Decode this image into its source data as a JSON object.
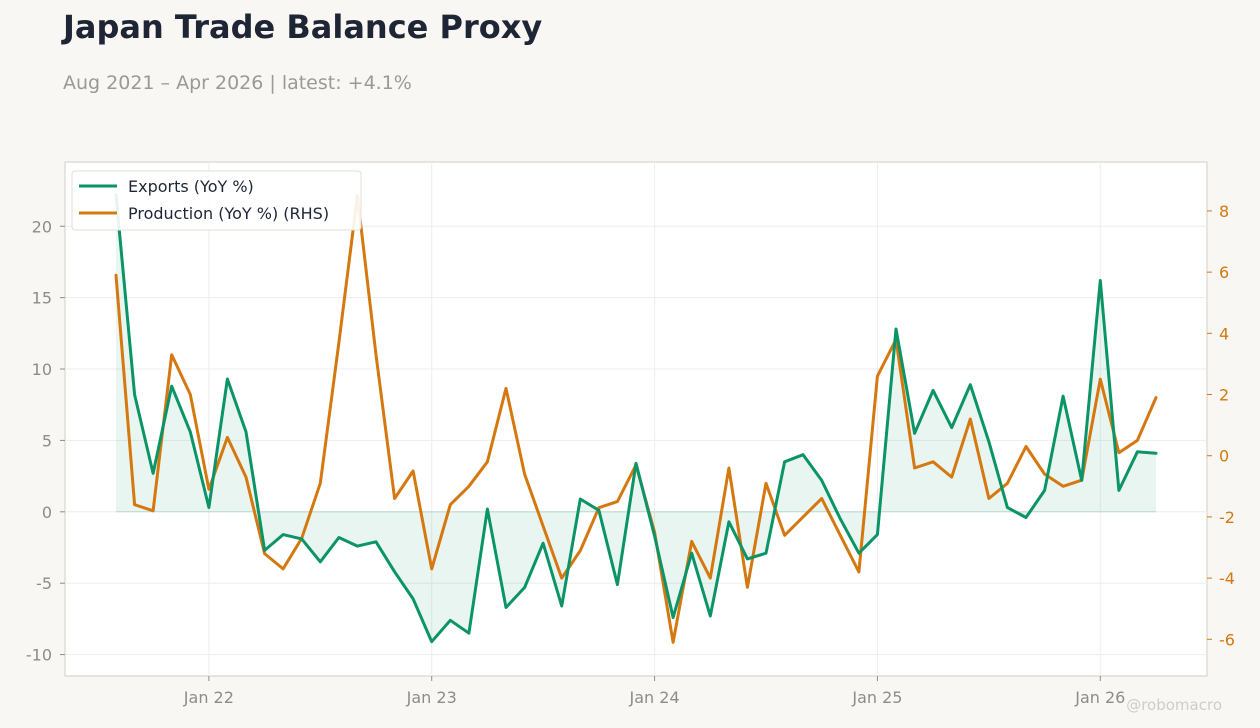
{
  "title": "Japan Trade Balance Proxy",
  "subtitle": "Aug 2021 – Apr 2026 | latest: +4.1%",
  "watermark": "@robomacro",
  "colors": {
    "exports": "#0a9467",
    "production": "#d4780f",
    "axis_right": "#d4780f",
    "background": "#f9f7f4",
    "plot_background": "#ffffff"
  },
  "legend": {
    "items": [
      {
        "label": "Exports (YoY %)",
        "color": "#0a9467"
      },
      {
        "label": "Production (YoY %) (RHS)",
        "color": "#d4780f"
      }
    ],
    "placement": "top-left"
  },
  "chart_data": {
    "type": "line",
    "x": [
      "2021-08",
      "2021-09",
      "2021-10",
      "2021-11",
      "2021-12",
      "2022-01",
      "2022-02",
      "2022-03",
      "2022-04",
      "2022-05",
      "2022-06",
      "2022-07",
      "2022-08",
      "2022-09",
      "2022-10",
      "2022-11",
      "2022-12",
      "2023-01",
      "2023-02",
      "2023-03",
      "2023-04",
      "2023-05",
      "2023-06",
      "2023-07",
      "2023-08",
      "2023-09",
      "2023-10",
      "2023-11",
      "2023-12",
      "2024-01",
      "2024-02",
      "2024-03",
      "2024-04",
      "2024-05",
      "2024-06",
      "2024-07",
      "2024-08",
      "2024-09",
      "2024-10",
      "2024-11",
      "2024-12",
      "2025-01",
      "2025-02",
      "2025-03",
      "2025-04",
      "2025-05",
      "2025-06",
      "2025-07",
      "2025-08",
      "2025-09",
      "2025-10",
      "2025-11",
      "2025-12",
      "2026-01",
      "2026-02",
      "2026-03",
      "2026-04"
    ],
    "series": [
      {
        "name": "Exports (YoY %)",
        "axis": "left",
        "fill": true,
        "values": [
          22.2,
          8.2,
          2.7,
          8.8,
          5.6,
          0.3,
          9.3,
          5.6,
          -2.7,
          -1.6,
          -1.9,
          -3.5,
          -1.8,
          -2.4,
          -2.1,
          -4.2,
          -6.1,
          -9.1,
          -7.6,
          -8.5,
          0.2,
          -6.7,
          -5.3,
          -2.2,
          -6.6,
          0.9,
          0.1,
          -5.1,
          3.4,
          -1.7,
          -7.4,
          -2.9,
          -7.3,
          -0.7,
          -3.3,
          -2.9,
          3.5,
          4.0,
          2.2,
          -0.5,
          -2.9,
          -1.6,
          12.8,
          5.5,
          8.5,
          5.9,
          8.9,
          4.9,
          0.3,
          -0.4,
          1.5,
          8.1,
          2.2,
          16.2,
          1.5,
          4.2,
          4.1
        ]
      },
      {
        "name": "Production (YoY %) (RHS)",
        "axis": "right",
        "fill": false,
        "values": [
          5.9,
          -1.6,
          -1.8,
          3.3,
          2.0,
          -1.1,
          0.6,
          -0.7,
          -3.2,
          -3.7,
          -2.7,
          -0.9,
          3.7,
          8.5,
          3.3,
          -1.4,
          -0.5,
          -3.7,
          -1.6,
          -1.0,
          -0.2,
          2.2,
          -0.6,
          -2.3,
          -4.0,
          -3.1,
          -1.7,
          -1.5,
          -0.3,
          -2.5,
          -6.1,
          -2.8,
          -4.0,
          -0.4,
          -4.3,
          -0.9,
          -2.6,
          -2.0,
          -1.4,
          -2.6,
          -3.8,
          2.6,
          3.8,
          -0.4,
          -0.2,
          -0.7,
          1.2,
          -1.4,
          -0.9,
          0.3,
          -0.6,
          -1.0,
          -0.8,
          2.5,
          0.1,
          0.5,
          1.9
        ]
      }
    ],
    "x_ticks": [
      {
        "date": "2022-01",
        "label": "Jan 22"
      },
      {
        "date": "2023-01",
        "label": "Jan 23"
      },
      {
        "date": "2024-01",
        "label": "Jan 24"
      },
      {
        "date": "2025-01",
        "label": "Jan 25"
      },
      {
        "date": "2026-01",
        "label": "Jan 26"
      }
    ],
    "y_left": {
      "ticks": [
        -10,
        -5,
        0,
        5,
        10,
        15,
        20
      ],
      "tick_labels": [
        "-10",
        "-5",
        "0",
        "5",
        "10",
        "15",
        "20"
      ],
      "lim": [
        -11.5,
        24.5
      ]
    },
    "y_right": {
      "ticks": [
        -6,
        -4,
        -2,
        0,
        2,
        4,
        6,
        8
      ],
      "tick_labels": [
        "-6",
        "-4",
        "-2",
        "0",
        "2",
        "4",
        "6",
        "8"
      ],
      "lim": [
        -7.2,
        9.6
      ]
    },
    "grid": true
  }
}
